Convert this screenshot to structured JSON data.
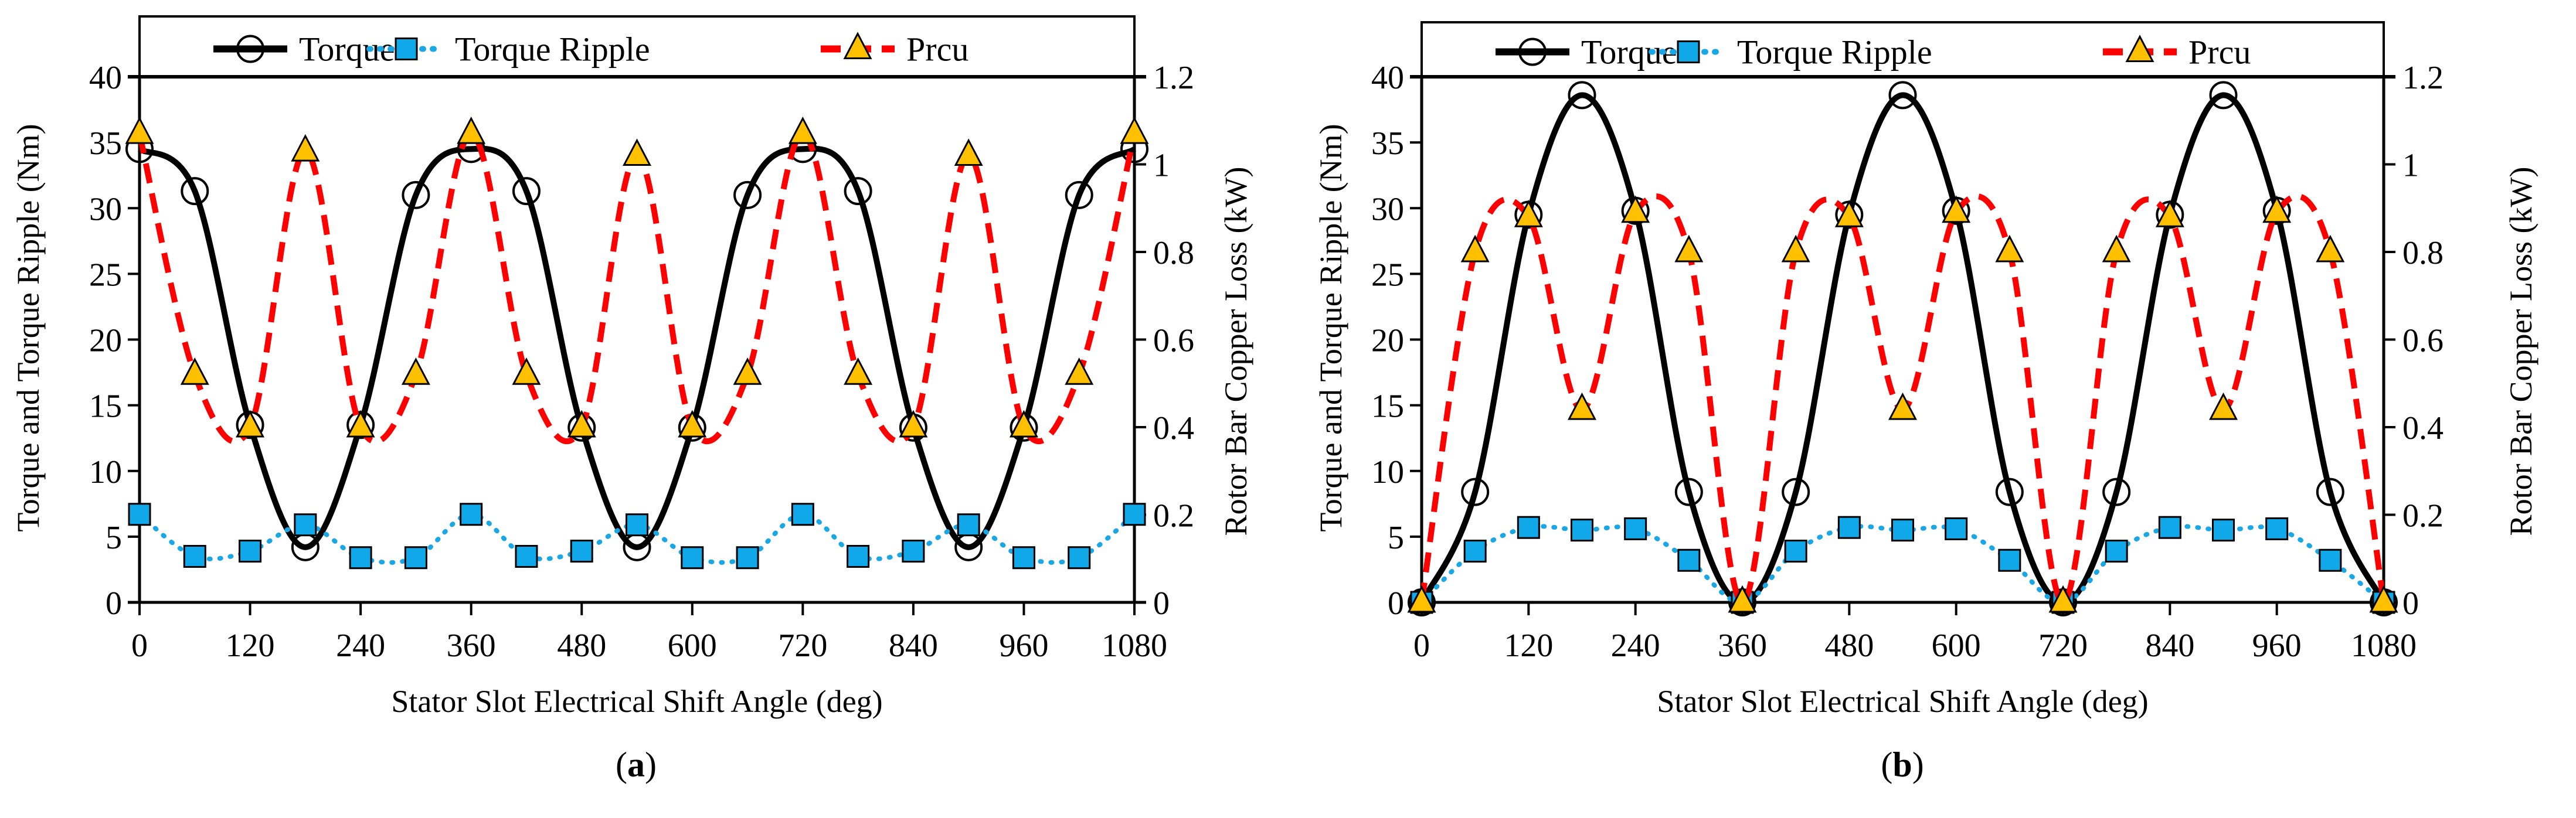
{
  "chart_data": [
    {
      "type": "line",
      "panel_label_prefix": "(",
      "panel_label": "a",
      "panel_label_suffix": ")",
      "xlabel": "Stator Slot Electrical Shift Angle (deg)",
      "ylabel": "Torque and Torque Ripple (Nm)",
      "y2label": "Rotor Bar Copper Loss (kW)",
      "xlim": [
        0,
        1080
      ],
      "ylim": [
        0,
        40
      ],
      "y2lim": [
        0,
        1.2
      ],
      "xticks": [
        "0",
        "120",
        "240",
        "360",
        "480",
        "600",
        "720",
        "840",
        "960",
        "1080"
      ],
      "yticks": [
        "0",
        "5",
        "10",
        "15",
        "20",
        "25",
        "30",
        "35",
        "40"
      ],
      "y2ticks": [
        "0",
        "0.2",
        "0.4",
        "0.6",
        "0.8",
        "1",
        "1.2"
      ],
      "legend_position": "top",
      "grid": false,
      "x": [
        0,
        60,
        120,
        180,
        240,
        300,
        360,
        420,
        480,
        540,
        600,
        660,
        720,
        780,
        840,
        900,
        960,
        1020,
        1080
      ],
      "series": [
        {
          "name": "Torque",
          "axis": "left",
          "color": "#000000",
          "marker": "circle",
          "values": [
            34.5,
            31.3,
            13.5,
            4.2,
            13.5,
            31.0,
            34.5,
            31.3,
            13.3,
            4.2,
            13.3,
            31.0,
            34.5,
            31.3,
            13.3,
            4.2,
            13.3,
            31.0,
            34.5
          ]
        },
        {
          "name": "Torque Ripple",
          "axis": "left",
          "color": "#1aa7e6",
          "marker": "square",
          "values": [
            6.7,
            3.5,
            3.9,
            5.9,
            3.4,
            3.4,
            6.7,
            3.5,
            3.9,
            5.9,
            3.4,
            3.4,
            6.7,
            3.5,
            3.9,
            5.9,
            3.4,
            3.4,
            6.7
          ]
        },
        {
          "name": "Prcu",
          "axis": "right",
          "color": "#ff0000",
          "marker": "triangle",
          "values": [
            1.07,
            0.52,
            0.4,
            1.03,
            0.4,
            0.52,
            1.07,
            0.52,
            0.4,
            1.02,
            0.4,
            0.52,
            1.07,
            0.52,
            0.4,
            1.02,
            0.4,
            0.52,
            1.07
          ]
        }
      ]
    },
    {
      "type": "line",
      "panel_label_prefix": "(",
      "panel_label": "b",
      "panel_label_suffix": ")",
      "xlabel": "Stator Slot Electrical Shift Angle (deg)",
      "ylabel": "Torque and Torque Ripple (Nm)",
      "y2label": "Rotor Bar Copper Loss (kW)",
      "xlim": [
        0,
        1080
      ],
      "ylim": [
        0,
        40
      ],
      "y2lim": [
        0,
        1.2
      ],
      "xticks": [
        "0",
        "120",
        "240",
        "360",
        "480",
        "600",
        "720",
        "840",
        "960",
        "1080"
      ],
      "yticks": [
        "0",
        "5",
        "10",
        "15",
        "20",
        "25",
        "30",
        "35",
        "40"
      ],
      "y2ticks": [
        "0",
        "0.2",
        "0.4",
        "0.6",
        "0.8",
        "1",
        "1.2"
      ],
      "legend_position": "top",
      "grid": false,
      "x": [
        0,
        60,
        120,
        180,
        240,
        300,
        360,
        420,
        480,
        540,
        600,
        660,
        720,
        780,
        840,
        900,
        960,
        1020,
        1080
      ],
      "series": [
        {
          "name": "Torque",
          "axis": "left",
          "color": "#000000",
          "marker": "circle",
          "values": [
            0,
            8.4,
            29.5,
            38.6,
            29.8,
            8.4,
            0,
            8.4,
            29.5,
            38.6,
            29.8,
            8.4,
            0,
            8.4,
            29.5,
            38.6,
            29.8,
            8.4,
            0
          ]
        },
        {
          "name": "Torque Ripple",
          "axis": "left",
          "color": "#1aa7e6",
          "marker": "square",
          "values": [
            0,
            3.9,
            5.7,
            5.5,
            5.6,
            3.2,
            0,
            3.9,
            5.7,
            5.5,
            5.6,
            3.2,
            0,
            3.9,
            5.7,
            5.5,
            5.6,
            3.2,
            0
          ]
        },
        {
          "name": "Prcu",
          "axis": "right",
          "color": "#ff0000",
          "marker": "triangle",
          "values": [
            0,
            0.8,
            0.88,
            0.44,
            0.89,
            0.8,
            0,
            0.8,
            0.88,
            0.44,
            0.89,
            0.8,
            0,
            0.8,
            0.88,
            0.44,
            0.89,
            0.8,
            0
          ]
        }
      ]
    }
  ],
  "colors": {
    "marker_fill_square": "#10a8e8",
    "marker_fill_triangle": "#ffc000"
  }
}
